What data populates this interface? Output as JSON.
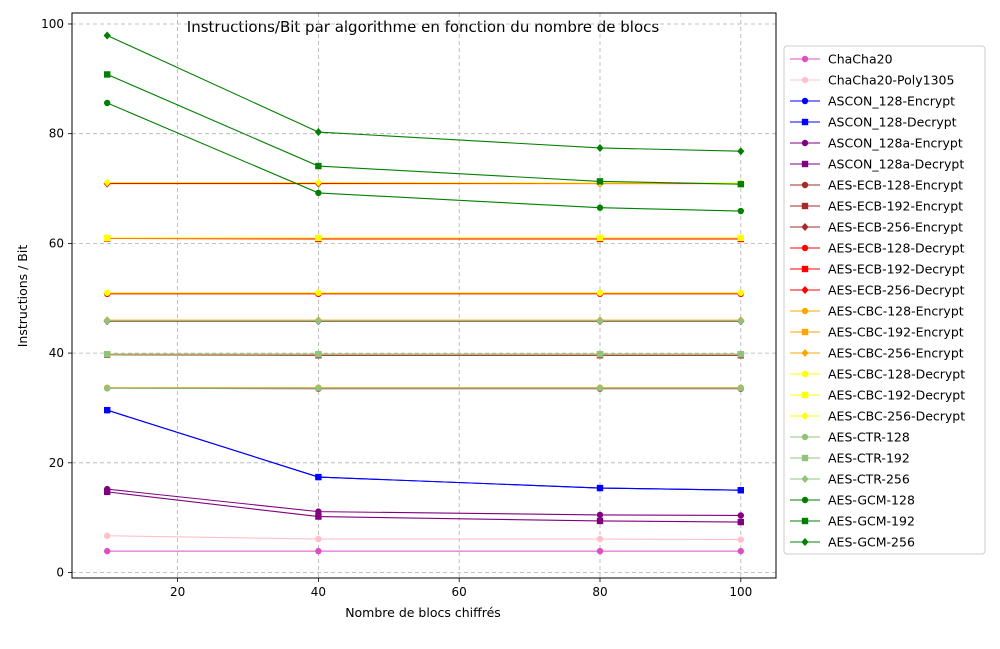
{
  "chart_data": {
    "type": "line",
    "title": "Instructions/Bit par algorithme en fonction du nombre de blocs",
    "xlabel": "Nombre de blocs chiffrés",
    "ylabel": "Instructions / Bit",
    "x": [
      10,
      40,
      80,
      100
    ],
    "xlim": [
      5,
      105
    ],
    "ylim": [
      -1,
      102
    ],
    "xticks": [
      20,
      40,
      60,
      80,
      100
    ],
    "yticks": [
      0,
      20,
      40,
      60,
      80,
      100
    ],
    "grid": true,
    "legend_position": "outside-right",
    "series": [
      {
        "name": "ChaCha20",
        "color": "#dd4fbf",
        "marker": "circle",
        "values": [
          3.9,
          3.9,
          3.9,
          3.9
        ]
      },
      {
        "name": "ChaCha20-Poly1305",
        "color": "#ffc0cb",
        "marker": "circle",
        "values": [
          6.7,
          6.1,
          6.1,
          6.0
        ]
      },
      {
        "name": "ASCON_128-Encrypt",
        "color": "#0000ff",
        "marker": "circle",
        "values": [
          29.6,
          17.4,
          15.4,
          15.0
        ]
      },
      {
        "name": "ASCON_128-Decrypt",
        "color": "#0000ff",
        "marker": "square",
        "values": [
          29.6,
          17.4,
          15.4,
          15.0
        ]
      },
      {
        "name": "ASCON_128a-Encrypt",
        "color": "#800080",
        "marker": "circle",
        "values": [
          15.2,
          11.1,
          10.5,
          10.4
        ]
      },
      {
        "name": "ASCON_128a-Decrypt",
        "color": "#800080",
        "marker": "square",
        "values": [
          14.7,
          10.2,
          9.4,
          9.2
        ]
      },
      {
        "name": "AES-ECB-128-Encrypt",
        "color": "#a52a2a",
        "marker": "circle",
        "values": [
          33.6,
          33.5,
          33.5,
          33.5
        ]
      },
      {
        "name": "AES-ECB-192-Encrypt",
        "color": "#a52a2a",
        "marker": "square",
        "values": [
          39.7,
          39.6,
          39.6,
          39.6
        ]
      },
      {
        "name": "AES-ECB-256-Encrypt",
        "color": "#a52a2a",
        "marker": "diamond",
        "values": [
          45.8,
          45.8,
          45.8,
          45.8
        ]
      },
      {
        "name": "AES-ECB-128-Decrypt",
        "color": "#ff0000",
        "marker": "circle",
        "values": [
          50.8,
          50.8,
          50.8,
          50.8
        ]
      },
      {
        "name": "AES-ECB-192-Decrypt",
        "color": "#ff0000",
        "marker": "square",
        "values": [
          60.9,
          60.8,
          60.8,
          60.8
        ]
      },
      {
        "name": "AES-ECB-256-Decrypt",
        "color": "#ff0000",
        "marker": "diamond",
        "values": [
          70.9,
          70.9,
          70.9,
          70.9
        ]
      },
      {
        "name": "AES-CBC-128-Encrypt",
        "color": "#ffa500",
        "marker": "circle",
        "values": [
          33.7,
          33.7,
          33.7,
          33.7
        ]
      },
      {
        "name": "AES-CBC-192-Encrypt",
        "color": "#ffa500",
        "marker": "square",
        "values": [
          39.8,
          39.8,
          39.8,
          39.8
        ]
      },
      {
        "name": "AES-CBC-256-Encrypt",
        "color": "#ffa500",
        "marker": "diamond",
        "values": [
          46.0,
          46.0,
          46.0,
          46.0
        ]
      },
      {
        "name": "AES-CBC-128-Decrypt",
        "color": "#ffff00",
        "marker": "circle",
        "values": [
          51.0,
          51.0,
          51.0,
          51.0
        ]
      },
      {
        "name": "AES-CBC-192-Decrypt",
        "color": "#ffff00",
        "marker": "square",
        "values": [
          61.0,
          61.0,
          61.0,
          61.0
        ]
      },
      {
        "name": "AES-CBC-256-Decrypt",
        "color": "#ffff00",
        "marker": "diamond",
        "values": [
          71.1,
          71.1,
          71.0,
          71.0
        ]
      },
      {
        "name": "AES-CTR-128",
        "color": "#90c47c",
        "marker": "circle",
        "values": [
          33.6,
          33.6,
          33.6,
          33.6
        ]
      },
      {
        "name": "AES-CTR-192",
        "color": "#90c47c",
        "marker": "square",
        "values": [
          39.8,
          39.8,
          39.8,
          39.8
        ]
      },
      {
        "name": "AES-CTR-256",
        "color": "#90c47c",
        "marker": "diamond",
        "values": [
          45.9,
          45.9,
          45.9,
          45.9
        ]
      },
      {
        "name": "AES-GCM-128",
        "color": "#008000",
        "marker": "circle",
        "values": [
          85.6,
          69.2,
          66.5,
          65.9
        ]
      },
      {
        "name": "AES-GCM-192",
        "color": "#008000",
        "marker": "square",
        "values": [
          90.8,
          74.1,
          71.3,
          70.8
        ]
      },
      {
        "name": "AES-GCM-256",
        "color": "#008000",
        "marker": "diamond",
        "values": [
          97.9,
          80.3,
          77.4,
          76.8
        ]
      }
    ]
  }
}
